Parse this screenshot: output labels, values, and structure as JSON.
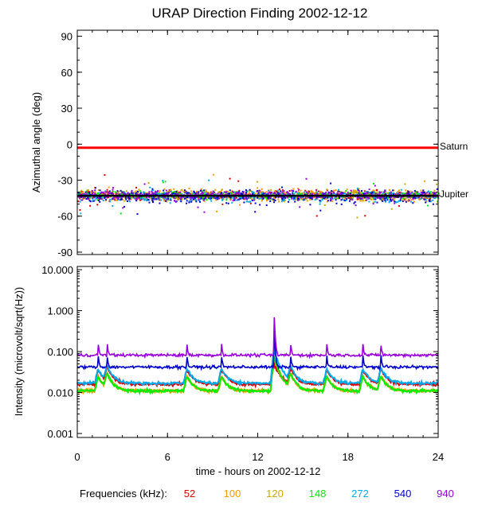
{
  "chart_data": [
    {
      "type": "scatter",
      "title": "URAP Direction Finding  2002-12-12",
      "ylabel": "Azimuthal angle (deg)",
      "xlim": [
        0,
        24
      ],
      "ylim": [
        -92,
        95
      ],
      "yticks": [
        90,
        60,
        30,
        0,
        -30,
        -60,
        -90
      ],
      "reference_lines": [
        {
          "name": "Saturn",
          "y": -3,
          "color": "#ff0000"
        },
        {
          "name": "Jupiter",
          "y": -43,
          "color": "#000000"
        }
      ],
      "series": [
        {
          "name": "52",
          "color": "#dd0000",
          "band_center": -42,
          "band_spread": 4
        },
        {
          "name": "100",
          "color": "#ff9900",
          "band_center": -42,
          "band_spread": 5
        },
        {
          "name": "120",
          "color": "#ccaa00",
          "band_center": -42,
          "band_spread": 5
        },
        {
          "name": "148",
          "color": "#00ee00",
          "band_center": -42,
          "band_spread": 3
        },
        {
          "name": "272",
          "color": "#00aaee",
          "band_center": -43,
          "band_spread": 5
        },
        {
          "name": "540",
          "color": "#0000cc",
          "band_center": -43,
          "band_spread": 6
        },
        {
          "name": "940",
          "color": "#9900dd",
          "band_center": -42,
          "band_spread": 4
        }
      ]
    },
    {
      "type": "line",
      "ylabel": "Intensity (microvolt/sqrt(Hz))",
      "xlabel": "time - hours on 2002-12-12",
      "xlim": [
        0,
        24
      ],
      "xticks": [
        0,
        6,
        12,
        18,
        24
      ],
      "yscale": "log",
      "ylim": [
        0.0008,
        12
      ],
      "yticks": [
        10,
        1,
        0.1,
        0.01,
        0.001
      ],
      "ytick_labels": [
        "10.000",
        "1.000",
        "0.100",
        "0.010",
        "0.001"
      ],
      "series": [
        {
          "name": "52",
          "color": "#dd0000",
          "baseline": 0.016
        },
        {
          "name": "100",
          "color": "#ff9900",
          "baseline": 0.011
        },
        {
          "name": "120",
          "color": "#ccaa00",
          "baseline": 0.011
        },
        {
          "name": "148",
          "color": "#00ee00",
          "baseline": 0.011
        },
        {
          "name": "272",
          "color": "#00aaee",
          "baseline": 0.017
        },
        {
          "name": "540",
          "color": "#0000cc",
          "baseline": 0.042
        },
        {
          "name": "940",
          "color": "#9900dd",
          "baseline": 0.082
        }
      ],
      "bursts_hours": [
        1.4,
        2.0,
        7.3,
        9.6,
        13.1,
        14.2,
        16.6,
        19.0,
        20.2
      ]
    }
  ],
  "legend": {
    "label": "Frequencies (kHz):",
    "items": [
      {
        "text": "52",
        "color": "#dd0000"
      },
      {
        "text": "100",
        "color": "#ff9900"
      },
      {
        "text": "120",
        "color": "#ccaa00"
      },
      {
        "text": "148",
        "color": "#00ee00"
      },
      {
        "text": "272",
        "color": "#00aaee"
      },
      {
        "text": "540",
        "color": "#0000cc"
      },
      {
        "text": "940",
        "color": "#9900dd"
      }
    ]
  }
}
